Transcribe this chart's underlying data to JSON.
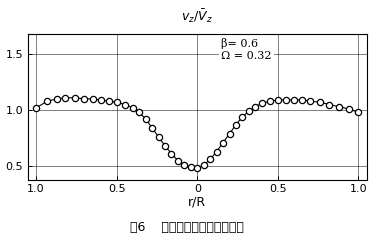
{
  "xlabel": "r/R",
  "caption": "图6    喷嘴流量计前的流速分布",
  "annotation_line1": "β= 0.6",
  "annotation_line2": "Ω = 0.32",
  "xlim": [
    -1.05,
    1.05
  ],
  "ylim": [
    0.38,
    1.68
  ],
  "xticks": [
    -1.0,
    -0.5,
    0.0,
    0.5,
    1.0
  ],
  "xticklabels": [
    "1.0",
    "0.5",
    "0",
    "0.5",
    "1.0"
  ],
  "yticks": [
    0.5,
    1.0,
    1.5
  ],
  "yticklabels": [
    "0.5",
    "1.0",
    "1.5"
  ],
  "r_values": [
    -1.0,
    -0.93,
    -0.87,
    -0.82,
    -0.76,
    -0.7,
    -0.65,
    -0.6,
    -0.55,
    -0.5,
    -0.45,
    -0.4,
    -0.36,
    -0.32,
    -0.28,
    -0.24,
    -0.2,
    -0.16,
    -0.12,
    -0.08,
    -0.04,
    0.0,
    0.04,
    0.08,
    0.12,
    0.16,
    0.2,
    0.24,
    0.28,
    0.32,
    0.36,
    0.4,
    0.45,
    0.5,
    0.55,
    0.6,
    0.65,
    0.7,
    0.76,
    0.82,
    0.88,
    0.94,
    1.0
  ],
  "v_values": [
    1.02,
    1.08,
    1.1,
    1.11,
    1.11,
    1.1,
    1.1,
    1.09,
    1.08,
    1.07,
    1.05,
    1.02,
    0.98,
    0.92,
    0.84,
    0.76,
    0.68,
    0.61,
    0.55,
    0.51,
    0.49,
    0.48,
    0.51,
    0.56,
    0.63,
    0.71,
    0.79,
    0.87,
    0.94,
    0.99,
    1.03,
    1.06,
    1.08,
    1.09,
    1.09,
    1.09,
    1.09,
    1.08,
    1.07,
    1.05,
    1.03,
    1.01,
    0.98
  ],
  "line_color": "#000000",
  "marker_facecolor": "#ffffff",
  "marker_edgecolor": "#000000",
  "background": "#ffffff",
  "grid_color": "#000000",
  "grid_linewidth": 0.5,
  "marker_size": 4.5,
  "line_width": 0.8,
  "annotation_fontsize": 8,
  "tick_fontsize": 8
}
